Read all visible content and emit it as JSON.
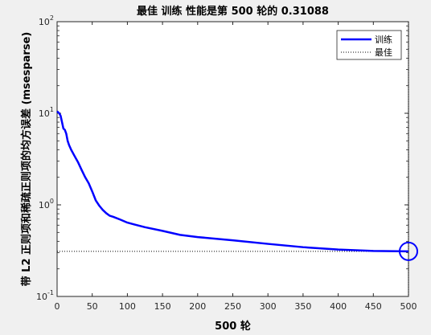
{
  "chart_data": {
    "type": "line",
    "title": "最佳 训练 性能是第 500 轮的 0.31088",
    "xlabel": "500 轮",
    "ylabel": "带 L2 正则项和稀疏正则项的均方误差 (msesparse)",
    "xlim": [
      0,
      500
    ],
    "ylim": [
      0.1,
      100
    ],
    "yscale": "log",
    "xticks": [
      0,
      50,
      100,
      150,
      200,
      250,
      300,
      350,
      400,
      450,
      500
    ],
    "yticks": [
      {
        "value": 0.1,
        "base": "10",
        "exp": "-1"
      },
      {
        "value": 1,
        "base": "10",
        "exp": "0"
      },
      {
        "value": 10,
        "base": "10",
        "exp": "1"
      },
      {
        "value": 100,
        "base": "10",
        "exp": "2"
      }
    ],
    "legend_position": "top-right",
    "series": [
      {
        "name": "训练",
        "color": "#0000ff",
        "style": "solid",
        "x": [
          0,
          3,
          5,
          7,
          9,
          11,
          13,
          15,
          17,
          20,
          25,
          30,
          35,
          40,
          45,
          50,
          55,
          60,
          65,
          70,
          75,
          80,
          90,
          100,
          110,
          125,
          150,
          175,
          200,
          250,
          300,
          350,
          400,
          450,
          500
        ],
        "y": [
          10.5,
          10.0,
          9.4,
          8.0,
          6.8,
          6.6,
          6.0,
          5.0,
          4.5,
          4.0,
          3.4,
          2.9,
          2.4,
          2.0,
          1.72,
          1.4,
          1.12,
          0.98,
          0.88,
          0.81,
          0.76,
          0.74,
          0.69,
          0.64,
          0.61,
          0.57,
          0.52,
          0.47,
          0.445,
          0.41,
          0.375,
          0.345,
          0.325,
          0.314,
          0.31088
        ]
      },
      {
        "name": "最佳",
        "color": "#000000",
        "style": "dotted",
        "best_epoch": 500,
        "best_value": 0.31088
      }
    ]
  }
}
